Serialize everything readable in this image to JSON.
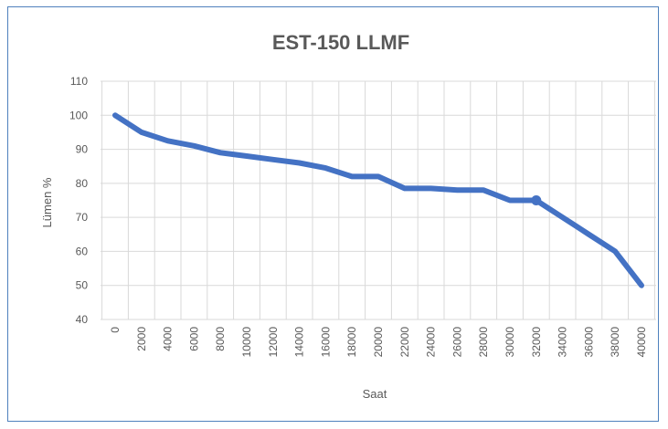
{
  "chart_data": {
    "type": "line",
    "title": "EST-150 LLMF",
    "xlabel": "Saat",
    "ylabel": "Lümen %",
    "x": [
      0,
      2000,
      4000,
      6000,
      8000,
      10000,
      12000,
      14000,
      16000,
      18000,
      20000,
      22000,
      24000,
      26000,
      28000,
      30000,
      32000,
      34000,
      36000,
      38000,
      40000
    ],
    "x_tick_labels": [
      "0",
      "2000",
      "4000",
      "6000",
      "8000",
      "10000",
      "12000",
      "14000",
      "16000",
      "18000",
      "20000",
      "22000",
      "24000",
      "26000",
      "28000",
      "30000",
      "32000",
      "34000",
      "36000",
      "38000",
      "40000"
    ],
    "series": [
      {
        "color": "#4472c4",
        "values": [
          100,
          95,
          92.5,
          91,
          89,
          88,
          87,
          86,
          84.5,
          82,
          82,
          78.5,
          78.5,
          78,
          78,
          75,
          75,
          70,
          65,
          60,
          50
        ]
      }
    ],
    "marker": {
      "x": 32000,
      "y": 75
    },
    "ylim": [
      40,
      110
    ],
    "y_ticks": [
      40,
      50,
      60,
      70,
      80,
      90,
      100,
      110
    ],
    "grid": true,
    "legend": "none"
  },
  "colors": {
    "frame": "#4f81bd",
    "grid": "#d9d9d9",
    "text": "#595959",
    "line": "#4472c4"
  }
}
